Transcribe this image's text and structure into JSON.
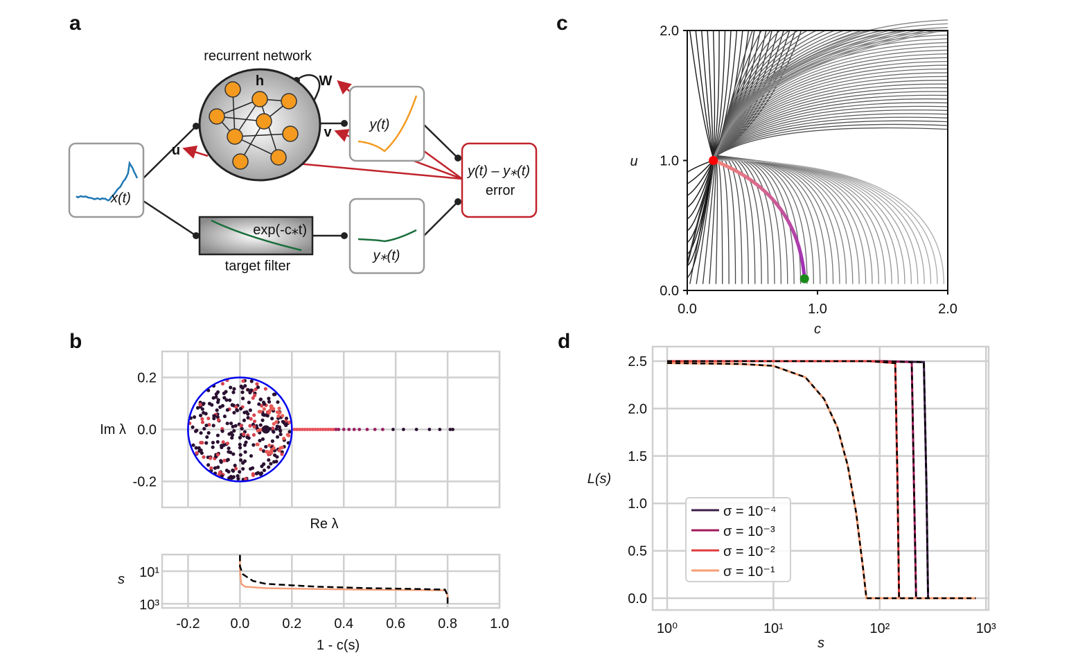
{
  "panel_labels": [
    "a",
    "b",
    "c",
    "d"
  ],
  "diagram": {
    "network_title": "recurrent network",
    "hidden_label": "h",
    "recurrent_weight_label": "W",
    "input_weight_label": "u",
    "readout_weight_label": "v",
    "input_signal_label": "x(t)",
    "output_label": "y(t)",
    "target_output_label": "y⁎(t)",
    "filter_expression": "exp(-c⁎t)",
    "filter_label": "target filter",
    "error_expression": "y(t) – y⁎(t)",
    "error_label": "error",
    "colors": {
      "input": "#1f77b4",
      "output": "#f39a1f",
      "target": "#1a6e3c",
      "error": "#c0232c",
      "node": "#f39a1f"
    }
  },
  "chart_data": [
    {
      "panel": "b-top",
      "type": "scatter",
      "xlabel": "Re λ",
      "ylabel": "Im λ",
      "xlim": [
        -0.3,
        1.0
      ],
      "ylim": [
        -0.3,
        0.3
      ],
      "x_ticks": [
        -0.2,
        0.0,
        0.2,
        0.4,
        0.6,
        0.8,
        1.0
      ],
      "y_ticks": [
        "0.2",
        "0.0",
        "-0.2"
      ],
      "grid": true,
      "circle": {
        "center": [
          0,
          0
        ],
        "radius": 0.2,
        "color": "#0000ee"
      },
      "real_axis_points": [
        0.21,
        0.22,
        0.23,
        0.24,
        0.25,
        0.26,
        0.27,
        0.28,
        0.29,
        0.3,
        0.31,
        0.32,
        0.33,
        0.34,
        0.35,
        0.36,
        0.37,
        0.38,
        0.4,
        0.42,
        0.44,
        0.46,
        0.49,
        0.52,
        0.55,
        0.59,
        0.63,
        0.68,
        0.73,
        0.77,
        0.81,
        0.82
      ],
      "cluster_note_visible": false
    },
    {
      "panel": "b-bottom",
      "type": "line",
      "xlabel": "1 - c(s)",
      "ylabel": "s",
      "xlim": [
        -0.3,
        1.0
      ],
      "x_tick_labels": [
        "-0.2",
        "0.0",
        "0.2",
        "0.4",
        "0.6",
        "0.8",
        "1.0"
      ],
      "y_tick_labels": [
        "10¹",
        "10³"
      ],
      "y_scale": "log (inverted)",
      "grid": true,
      "series": [
        {
          "style": "solid",
          "color": "#f4a07a",
          "x": [
            0.0,
            0.0,
            0.005,
            0.02,
            0.1,
            0.3,
            0.5,
            0.7,
            0.79,
            0.8,
            0.8
          ],
          "y": [
            1,
            10,
            60,
            90,
            110,
            125,
            135,
            145,
            150,
            300,
            1000
          ]
        },
        {
          "style": "dashed",
          "color": "#000000",
          "x": [
            0.0,
            0.0,
            0.01,
            0.05,
            0.1,
            0.3,
            0.5,
            0.7,
            0.79,
            0.8,
            0.8
          ],
          "y": [
            1,
            5,
            15,
            40,
            60,
            90,
            110,
            125,
            135,
            300,
            1000
          ]
        }
      ]
    },
    {
      "panel": "c",
      "type": "streamplot",
      "xlabel": "c",
      "ylabel": "u",
      "xlim": [
        0.0,
        2.0
      ],
      "ylim": [
        0.0,
        2.0
      ],
      "x_tick_labels": [
        "0.0",
        "1.0",
        "2.0"
      ],
      "y_tick_labels": [
        "2.0",
        "1.0",
        "0.0"
      ],
      "trajectory": {
        "start": [
          0.2,
          1.0
        ],
        "end": [
          0.9,
          0.09
        ],
        "start_color": "#ff0000",
        "end_color": "#1a8a1a",
        "gradient": [
          "#f5877a",
          "#9a2ab8"
        ]
      }
    },
    {
      "panel": "d",
      "type": "line",
      "xlabel": "s",
      "ylabel": "L(s)",
      "x_scale": "log",
      "xlim": [
        0.75,
        1000
      ],
      "ylim": [
        -0.12,
        2.65
      ],
      "x_tick_labels": [
        "10⁰",
        "10¹",
        "10²",
        "10³"
      ],
      "x_tick_values": [
        1,
        10,
        100,
        1000
      ],
      "y_tick_labels": [
        "2.5",
        "2.0",
        "1.5",
        "1.0",
        "0.5",
        "0.0"
      ],
      "y_tick_values": [
        2.5,
        2.0,
        1.5,
        1.0,
        0.5,
        0.0
      ],
      "grid": true,
      "legend": "center-left",
      "series": [
        {
          "name": "σ = 10⁻⁴",
          "color": "#3b1d48",
          "x": [
            1,
            100,
            260,
            275,
            285,
            800
          ],
          "y": [
            2.5,
            2.5,
            2.49,
            1.2,
            0,
            0
          ]
        },
        {
          "name": "σ = 10⁻³",
          "color": "#a11a5b",
          "x": [
            1,
            100,
            200,
            210,
            220,
            800
          ],
          "y": [
            2.5,
            2.5,
            2.49,
            1.2,
            0,
            0
          ]
        },
        {
          "name": "σ = 10⁻²",
          "color": "#e03b3b",
          "x": [
            1,
            80,
            140,
            147,
            152,
            800
          ],
          "y": [
            2.5,
            2.5,
            2.48,
            1.2,
            0,
            0
          ]
        },
        {
          "name": "σ = 10⁻¹",
          "color": "#f69c73",
          "x": [
            1,
            5,
            10,
            20,
            30,
            40,
            50,
            60,
            70,
            75,
            800
          ],
          "y": [
            2.48,
            2.47,
            2.45,
            2.33,
            2.1,
            1.8,
            1.4,
            0.9,
            0.3,
            0,
            0
          ]
        }
      ],
      "reference_style": "black dashed overlay on each series"
    }
  ]
}
